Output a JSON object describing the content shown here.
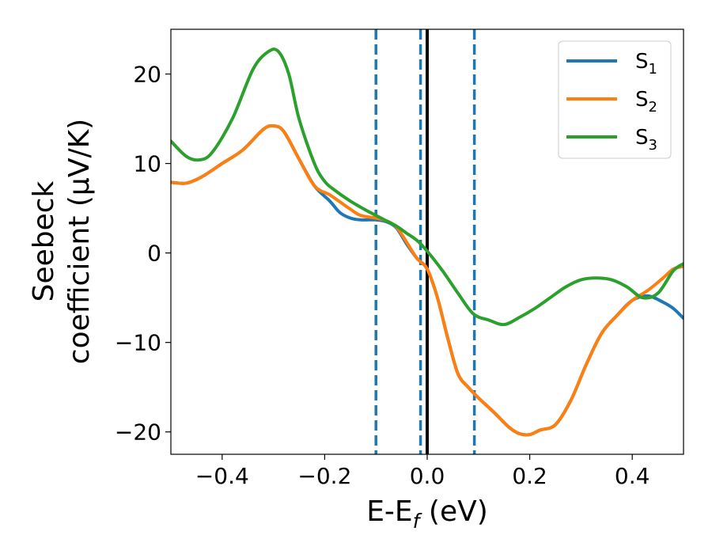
{
  "chart_data": {
    "type": "line",
    "xlabel": {
      "base": "E-E",
      "sub": "f",
      "tail": " (eV)"
    },
    "ylabel_lines": [
      "Seebeck",
      "coefficient  (μV/K)"
    ],
    "xlim": [
      -0.5,
      0.5
    ],
    "ylim": [
      -22.5,
      25
    ],
    "xticks": [
      -0.4,
      -0.2,
      0.0,
      0.2,
      0.4
    ],
    "xtick_labels": [
      "−0.4",
      "−0.2",
      "0.0",
      "0.2",
      "0.4"
    ],
    "yticks": [
      -20,
      -10,
      0,
      10,
      20
    ],
    "ytick_labels": [
      "−20",
      "−10",
      "0",
      "10",
      "20"
    ],
    "grid": false,
    "legend_placement": "top-right",
    "vlines": [
      {
        "x": -0.1,
        "style": "dashed",
        "color": "#1f77b4"
      },
      {
        "x": -0.013,
        "style": "dashed",
        "color": "#1f77b4"
      },
      {
        "x": 0.0,
        "style": "solid",
        "color": "#000000"
      },
      {
        "x": 0.092,
        "style": "dashed",
        "color": "#1f77b4"
      }
    ],
    "series": [
      {
        "name": {
          "base": "S",
          "sub": "1"
        },
        "color": "#1f77b4",
        "x": [
          -0.5,
          -0.47,
          -0.44,
          -0.4,
          -0.36,
          -0.32,
          -0.3,
          -0.28,
          -0.25,
          -0.22,
          -0.19,
          -0.17,
          -0.15,
          -0.13,
          -0.1,
          -0.08,
          -0.06,
          -0.04,
          -0.02,
          0.0,
          0.02,
          0.04,
          0.06,
          0.08,
          0.1,
          0.13,
          0.16,
          0.18,
          0.2,
          0.22,
          0.25,
          0.28,
          0.31,
          0.34,
          0.37,
          0.4,
          0.43,
          0.46,
          0.48,
          0.5
        ],
        "y": [
          7.9,
          7.8,
          8.5,
          10.0,
          11.5,
          13.8,
          14.2,
          13.6,
          10.5,
          7.5,
          5.8,
          4.5,
          3.9,
          3.7,
          3.7,
          3.5,
          2.8,
          1.0,
          -0.6,
          -1.8,
          -5.0,
          -9.5,
          -13.5,
          -15.0,
          -16.2,
          -17.8,
          -19.5,
          -20.2,
          -20.3,
          -19.8,
          -19.2,
          -16.5,
          -12.5,
          -9.0,
          -7.0,
          -5.3,
          -4.8,
          -5.5,
          -6.2,
          -7.3
        ]
      },
      {
        "name": {
          "base": "S",
          "sub": "2"
        },
        "color": "#ff7f0e",
        "x": [
          -0.5,
          -0.47,
          -0.44,
          -0.4,
          -0.36,
          -0.32,
          -0.3,
          -0.28,
          -0.25,
          -0.22,
          -0.19,
          -0.17,
          -0.15,
          -0.13,
          -0.1,
          -0.08,
          -0.06,
          -0.04,
          -0.02,
          0.0,
          0.02,
          0.04,
          0.06,
          0.08,
          0.1,
          0.13,
          0.16,
          0.18,
          0.2,
          0.22,
          0.25,
          0.28,
          0.31,
          0.34,
          0.37,
          0.4,
          0.43,
          0.46,
          0.48,
          0.5
        ],
        "y": [
          7.9,
          7.8,
          8.5,
          10.0,
          11.5,
          13.8,
          14.2,
          13.6,
          10.5,
          7.5,
          6.5,
          5.7,
          4.9,
          4.2,
          3.9,
          3.6,
          2.9,
          1.2,
          -0.6,
          -1.8,
          -5.0,
          -9.5,
          -13.5,
          -15.0,
          -16.2,
          -17.8,
          -19.5,
          -20.2,
          -20.3,
          -19.8,
          -19.2,
          -16.5,
          -12.5,
          -9.0,
          -7.0,
          -5.3,
          -4.2,
          -2.8,
          -1.8,
          -1.5
        ]
      },
      {
        "name": {
          "base": "S",
          "sub": "3"
        },
        "color": "#2ca02c",
        "x": [
          -0.5,
          -0.47,
          -0.445,
          -0.42,
          -0.38,
          -0.34,
          -0.31,
          -0.29,
          -0.27,
          -0.25,
          -0.22,
          -0.2,
          -0.18,
          -0.15,
          -0.12,
          -0.1,
          -0.08,
          -0.06,
          -0.04,
          -0.02,
          0.0,
          0.03,
          0.06,
          0.09,
          0.12,
          0.15,
          0.18,
          0.21,
          0.24,
          0.27,
          0.3,
          0.33,
          0.36,
          0.39,
          0.42,
          0.45,
          0.48,
          0.5
        ],
        "y": [
          12.5,
          10.8,
          10.4,
          11.2,
          15.0,
          20.5,
          22.5,
          22.5,
          20.0,
          15.0,
          10.0,
          8.0,
          7.0,
          5.8,
          4.8,
          4.2,
          3.6,
          3.0,
          2.2,
          1.4,
          0.2,
          -2.0,
          -4.5,
          -6.8,
          -7.5,
          -8.0,
          -7.2,
          -6.2,
          -5.0,
          -3.8,
          -3.0,
          -2.8,
          -3.0,
          -3.8,
          -5.0,
          -4.5,
          -2.0,
          -1.2
        ]
      }
    ]
  }
}
